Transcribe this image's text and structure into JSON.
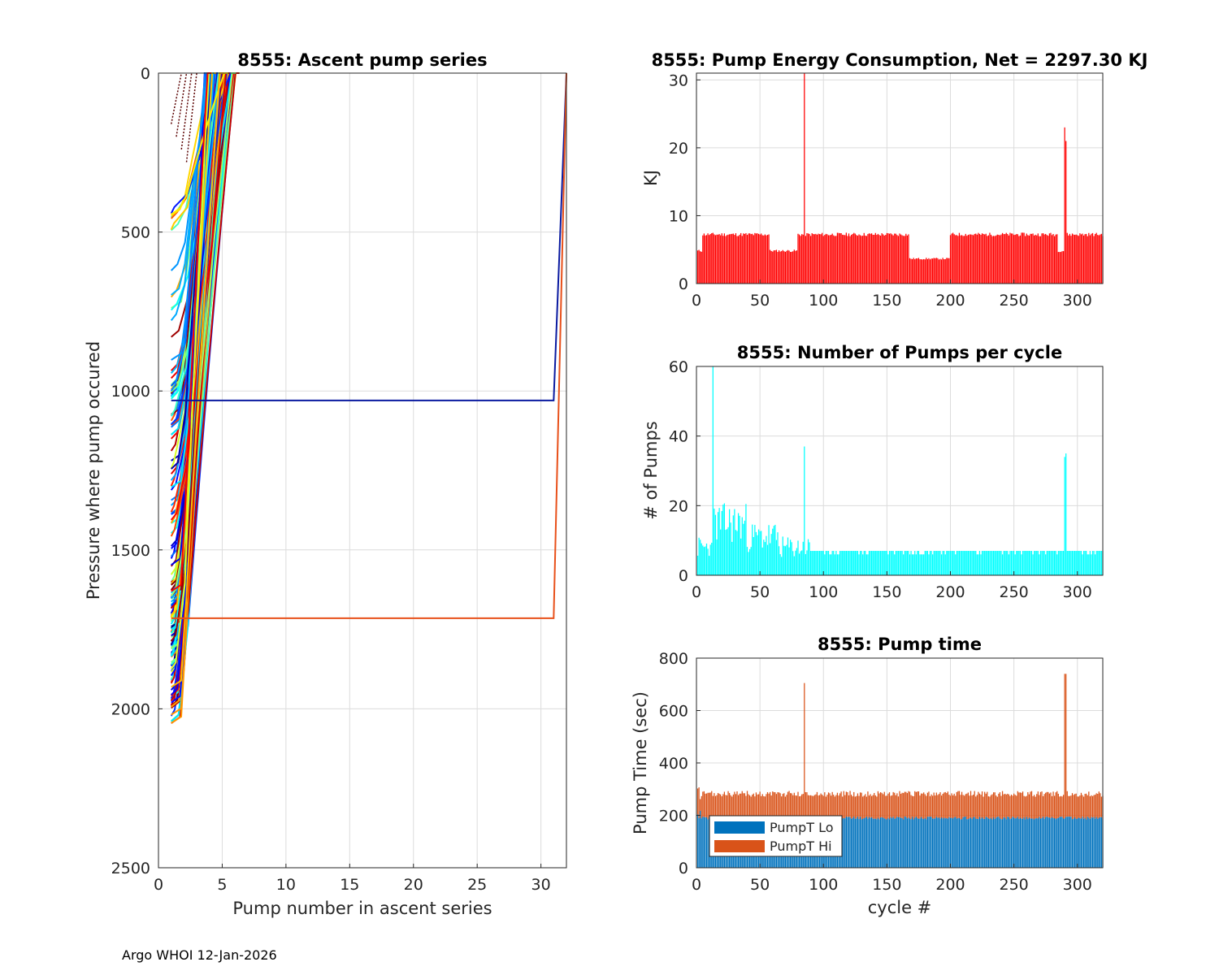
{
  "footer": "Argo WHOI 12-Jan-2026",
  "chart_data": [
    {
      "id": "ascent",
      "type": "line",
      "title": "8555: Ascent pump series",
      "xlabel": "Pump number in ascent series",
      "ylabel": "Pressure where pump occured",
      "xlim": [
        0,
        32
      ],
      "ylim": [
        0,
        2500
      ],
      "y_reversed": true,
      "grid": true,
      "xticks": [
        0,
        5,
        10,
        15,
        20,
        25,
        30
      ],
      "yticks": [
        0,
        500,
        1000,
        1500,
        2000,
        2500
      ],
      "series_summary": "one line per profile cycle; pressure decreasing with pump number, colored by cycle (jet colormap)",
      "highlight_series": [
        {
          "color": "#0a1aa0",
          "x": [
            1,
            2,
            31,
            32
          ],
          "y": [
            1030,
            1030,
            1030,
            0
          ]
        },
        {
          "color": "#e8501a",
          "x": [
            1,
            2,
            31,
            32
          ],
          "y": [
            1715,
            1715,
            1715,
            0
          ]
        }
      ]
    },
    {
      "id": "energy",
      "type": "bar",
      "title": "8555: Pump Energy Consumption,  Net = 2297.30 KJ",
      "xlabel": "",
      "ylabel": "KJ",
      "xlim": [
        0,
        320
      ],
      "ylim": [
        0,
        31
      ],
      "xticks": [
        0,
        50,
        100,
        150,
        200,
        250,
        300
      ],
      "yticks": [
        0,
        10,
        20,
        30
      ],
      "grid": true,
      "color": "#ff0000",
      "segments": [
        {
          "from": 1,
          "to": 5,
          "value": 5.0
        },
        {
          "from": 5,
          "to": 58,
          "value": 7.5
        },
        {
          "from": 58,
          "to": 80,
          "value": 5.0
        },
        {
          "from": 80,
          "to": 168,
          "value": 7.5
        },
        {
          "from": 168,
          "to": 200,
          "value": 3.8
        },
        {
          "from": 200,
          "to": 285,
          "value": 7.5
        },
        {
          "from": 285,
          "to": 290,
          "value": 5.0
        },
        {
          "from": 290,
          "to": 320,
          "value": 7.5
        }
      ],
      "spikes": [
        {
          "x": 85,
          "value": 31
        },
        {
          "x": 290,
          "value": 23
        },
        {
          "x": 291,
          "value": 21
        }
      ]
    },
    {
      "id": "pumps",
      "type": "bar",
      "title": "8555: Number of Pumps per cycle",
      "xlabel": "",
      "ylabel": "# of Pumps",
      "xlim": [
        0,
        320
      ],
      "ylim": [
        0,
        60
      ],
      "xticks": [
        0,
        50,
        100,
        150,
        200,
        250,
        300
      ],
      "yticks": [
        0,
        20,
        40,
        60
      ],
      "grid": true,
      "color": "#00ffff",
      "segments": [
        {
          "from": 1,
          "to": 12,
          "value": 8
        },
        {
          "from": 12,
          "to": 40,
          "value": 15
        },
        {
          "from": 40,
          "to": 65,
          "value": 11
        },
        {
          "from": 65,
          "to": 90,
          "value": 8
        },
        {
          "from": 90,
          "to": 320,
          "value": 7
        }
      ],
      "spikes": [
        {
          "x": 13,
          "value": 60
        },
        {
          "x": 85,
          "value": 37
        },
        {
          "x": 290,
          "value": 34
        },
        {
          "x": 291,
          "value": 35
        }
      ]
    },
    {
      "id": "pumptime",
      "type": "bar",
      "title": "8555: Pump time",
      "xlabel": "cycle #",
      "ylabel": "Pump Time (sec)",
      "xlim": [
        0,
        320
      ],
      "ylim": [
        0,
        800
      ],
      "xticks": [
        0,
        50,
        100,
        150,
        200,
        250,
        300
      ],
      "yticks": [
        0,
        200,
        400,
        600,
        800
      ],
      "grid": true,
      "stacked": true,
      "legend": {
        "placement": "bottom-left"
      },
      "series": [
        {
          "name": "PumpT Lo",
          "color": "#0072bd",
          "typical": 190
        },
        {
          "name": "PumpT Hi",
          "color": "#d95319",
          "typical_total": 285
        }
      ],
      "spikes": [
        {
          "x": 85,
          "total": 705
        },
        {
          "x": 290,
          "total": 740
        },
        {
          "x": 291,
          "total": 740
        }
      ]
    }
  ]
}
